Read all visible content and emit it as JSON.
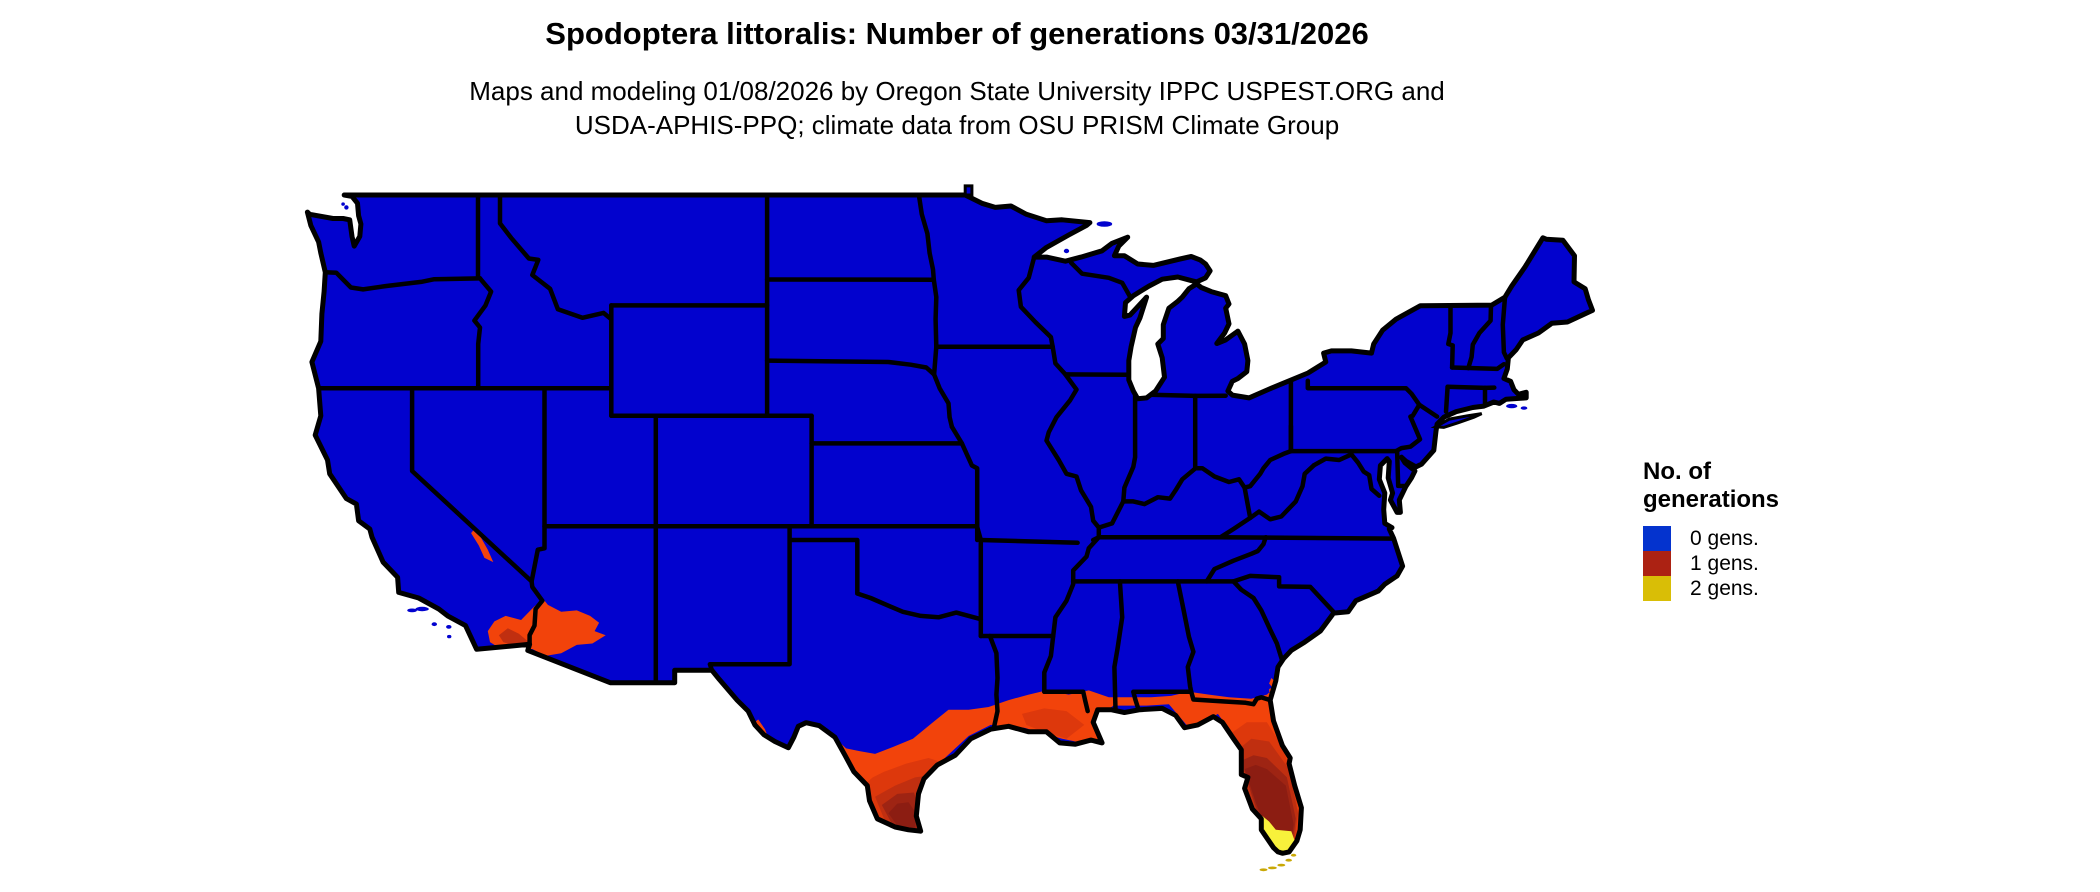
{
  "title": "Spodoptera littoralis: Number of generations 03/31/2026",
  "subtitle": {
    "line1": "Maps and modeling 01/08/2026 by Oregon State University IPPC USPEST.ORG and",
    "line2": "USDA-APHIS-PPQ; climate data from OSU PRISM Climate Group"
  },
  "legend": {
    "title_line1": "No. of",
    "title_line2": "generations",
    "items": [
      {
        "label": "0 gens.",
        "color": "#0433CE"
      },
      {
        "label": "1 gens.",
        "color": "#AC2213"
      },
      {
        "label": "2 gens.",
        "color": "#D9BE06"
      }
    ]
  },
  "map": {
    "name": "united-states-lower-48-generations-map",
    "colors": {
      "water_background": "#FFFFFF",
      "land_0_gens": "#0202CE",
      "state_border": "#000000",
      "gens_1_orange": "#F2430B",
      "gens_1_deep_orange": "#DD380C",
      "gens_1_red": "#C02F10",
      "gens_1_brick": "#9E2413",
      "gens_1_maroon": "#8C1D12",
      "gens_2_yellow": "#F8F13B",
      "florida_keys_gold": "#C9A806"
    }
  }
}
